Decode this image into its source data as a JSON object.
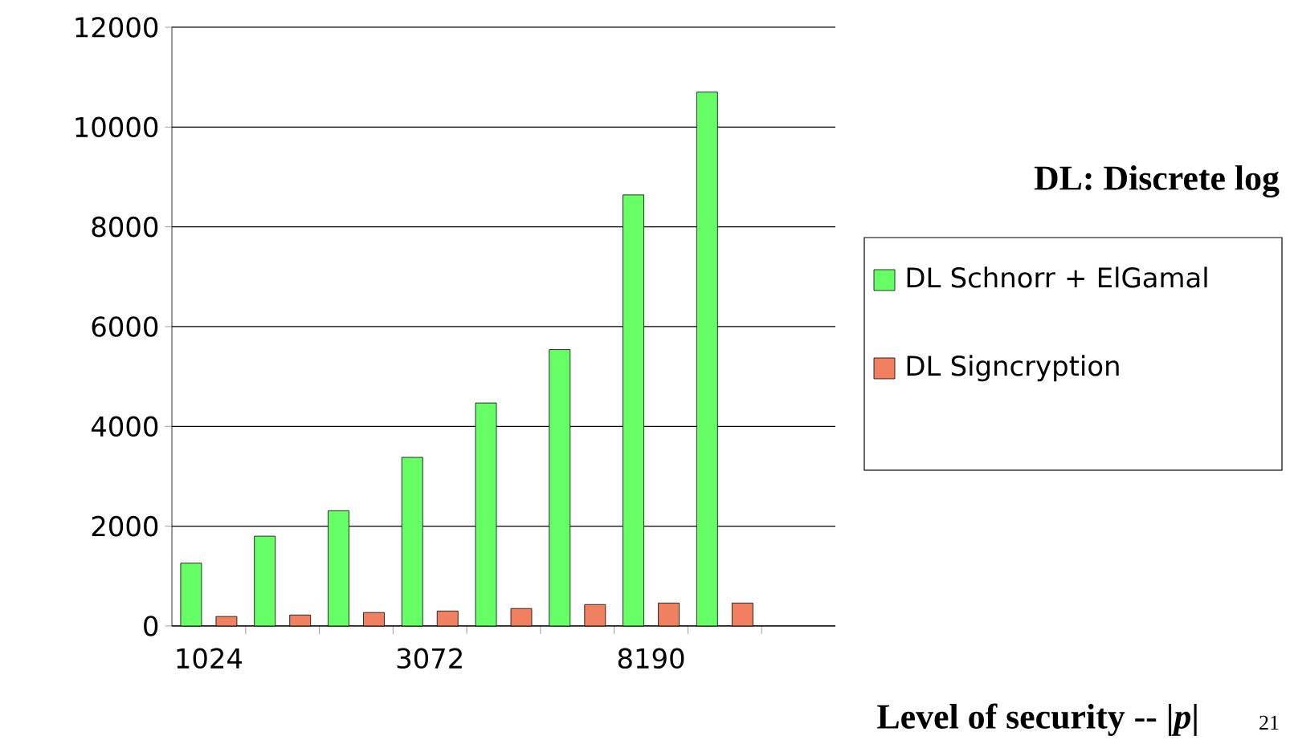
{
  "chart_data": {
    "type": "bar",
    "title": "DL: Discrete log",
    "xlabel": "Level of security -- |*p*|",
    "categories": [
      "1024",
      null,
      null,
      "3072",
      null,
      null,
      "8190",
      null,
      null
    ],
    "series": [
      {
        "name": "DL Schnorr + ElGamal",
        "color": "#66ff66",
        "values": [
          1260,
          1800,
          2310,
          3380,
          4470,
          5540,
          8640,
          10700,
          null
        ]
      },
      {
        "name": "DL Signcryption",
        "color": "#f08060",
        "values": [
          190,
          220,
          270,
          300,
          350,
          430,
          460,
          460,
          null
        ]
      }
    ],
    "ylim": [
      0,
      12000
    ],
    "yticks": [
      0,
      2000,
      4000,
      6000,
      8000,
      10000,
      12000
    ],
    "grid": "y",
    "legend": "right",
    "annotations": [
      "21"
    ]
  }
}
